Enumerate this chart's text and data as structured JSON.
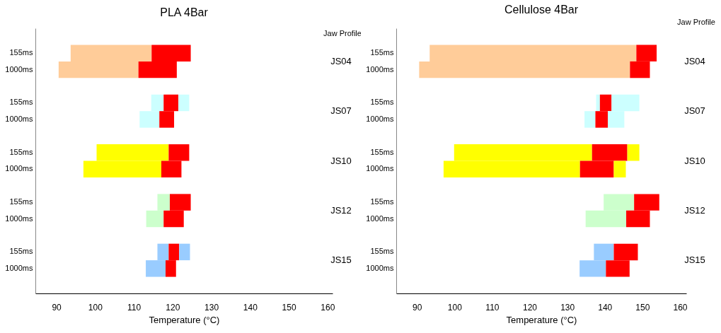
{
  "chart_data": [
    {
      "type": "bar",
      "orientation": "horizontal",
      "title": "PLA 4Bar",
      "xlabel": "Temperature (°C)",
      "categories": [
        "155ms",
        "1000ms",
        null,
        "155ms",
        "1000ms",
        null,
        "155ms",
        "1000ms",
        null,
        "155ms",
        "1000ms",
        null,
        "155ms",
        "1000ms"
      ],
      "series": [
        {
          "colors": [
            "#ffcc99",
            "#ffcc99",
            null,
            "#ccffff",
            "#ccffff",
            null,
            "#ffff00",
            "#ffff00",
            null,
            "#ccffcc",
            "#ccffcc",
            null,
            "#99ccff",
            "#99ccff"
          ],
          "base": [
            93.7,
            90.6,
            null,
            114.5,
            111.5,
            null,
            100.4,
            97.0,
            null,
            116.1,
            113.2,
            null,
            116.1,
            113.1
          ],
          "values": [
            20.9,
            20.6,
            null,
            3.2,
            5.1,
            null,
            18.6,
            20.1,
            null,
            3.2,
            4.5,
            null,
            2.9,
            5.1
          ]
        },
        {
          "color": "#ff0000",
          "base": [
            114.6,
            111.2,
            null,
            117.7,
            116.6,
            null,
            119.0,
            117.1,
            null,
            119.3,
            117.7,
            null,
            119.0,
            118.2
          ],
          "values": [
            10.1,
            9.9,
            null,
            3.8,
            3.8,
            null,
            5.3,
            5.2,
            null,
            5.4,
            5.2,
            null,
            2.7,
            2.7
          ]
        },
        {
          "colors": [
            null,
            null,
            null,
            "#ccffff",
            null,
            null,
            null,
            null,
            null,
            null,
            null,
            null,
            "#99ccff",
            null
          ],
          "base": [
            null,
            null,
            null,
            121.5,
            null,
            null,
            null,
            null,
            null,
            null,
            null,
            null,
            121.7,
            null
          ],
          "values": [
            null,
            null,
            null,
            2.8,
            null,
            null,
            null,
            null,
            null,
            null,
            null,
            null,
            2.8,
            null
          ]
        }
      ],
      "annotations": [
        "Jaw Profile",
        "JS04",
        "JS07",
        "JS10",
        "JS12",
        "JS15"
      ],
      "xlim": [
        84.6,
        161.3
      ],
      "xticks": [
        90,
        100,
        110,
        120,
        130,
        140,
        150,
        160
      ]
    },
    {
      "type": "bar",
      "orientation": "horizontal",
      "title": "Cellulose 4Bar",
      "xlabel": "Temperature (°C)",
      "categories": [
        "155ms",
        "1000ms",
        null,
        "155ms",
        "1000ms",
        null,
        "155ms",
        "1000ms",
        null,
        "155ms",
        "1000ms",
        null,
        "155ms",
        "1000ms"
      ],
      "series": [
        {
          "colors": [
            "#ffcc99",
            "#ffcc99",
            null,
            "#ccffff",
            "#ccffff",
            null,
            "#ffff00",
            "#ffff00",
            null,
            "#ccffcc",
            "#ccffcc",
            null,
            "#99ccff",
            "#99ccff"
          ],
          "base": [
            93.4,
            90.6,
            null,
            137.7,
            134.6,
            null,
            99.9,
            97.1,
            null,
            139.7,
            134.9,
            null,
            137.1,
            133.3
          ],
          "values": [
            55.0,
            56.1,
            null,
            1.0,
            2.9,
            null,
            36.7,
            36.3,
            null,
            8.1,
            10.8,
            null,
            5.3,
            7.0
          ]
        },
        {
          "color": "#ff0000",
          "base": [
            148.4,
            146.7,
            null,
            138.7,
            137.5,
            null,
            136.6,
            133.4,
            null,
            147.8,
            145.7,
            null,
            142.4,
            140.3
          ],
          "values": [
            5.4,
            5.3,
            null,
            3.1,
            3.3,
            null,
            9.4,
            9.0,
            null,
            6.7,
            6.3,
            null,
            6.4,
            6.3
          ]
        },
        {
          "colors": [
            null,
            null,
            null,
            "#ccffff",
            "#ccffff",
            null,
            "#ffff00",
            "#ffff00",
            null,
            null,
            null,
            null,
            null,
            null
          ],
          "base": [
            null,
            null,
            null,
            141.8,
            140.8,
            null,
            146.0,
            142.4,
            null,
            null,
            null,
            null,
            null,
            null
          ],
          "values": [
            null,
            null,
            null,
            7.4,
            4.4,
            null,
            3.2,
            3.2,
            null,
            null,
            null,
            null,
            null,
            null
          ]
        }
      ],
      "annotations": [
        "Jaw Profile",
        "JS04",
        "JS07",
        "JS10",
        "JS12",
        "JS15"
      ],
      "xlim": [
        84.5,
        161.7
      ],
      "xticks": [
        90,
        100,
        110,
        120,
        130,
        140,
        150,
        160
      ]
    }
  ]
}
